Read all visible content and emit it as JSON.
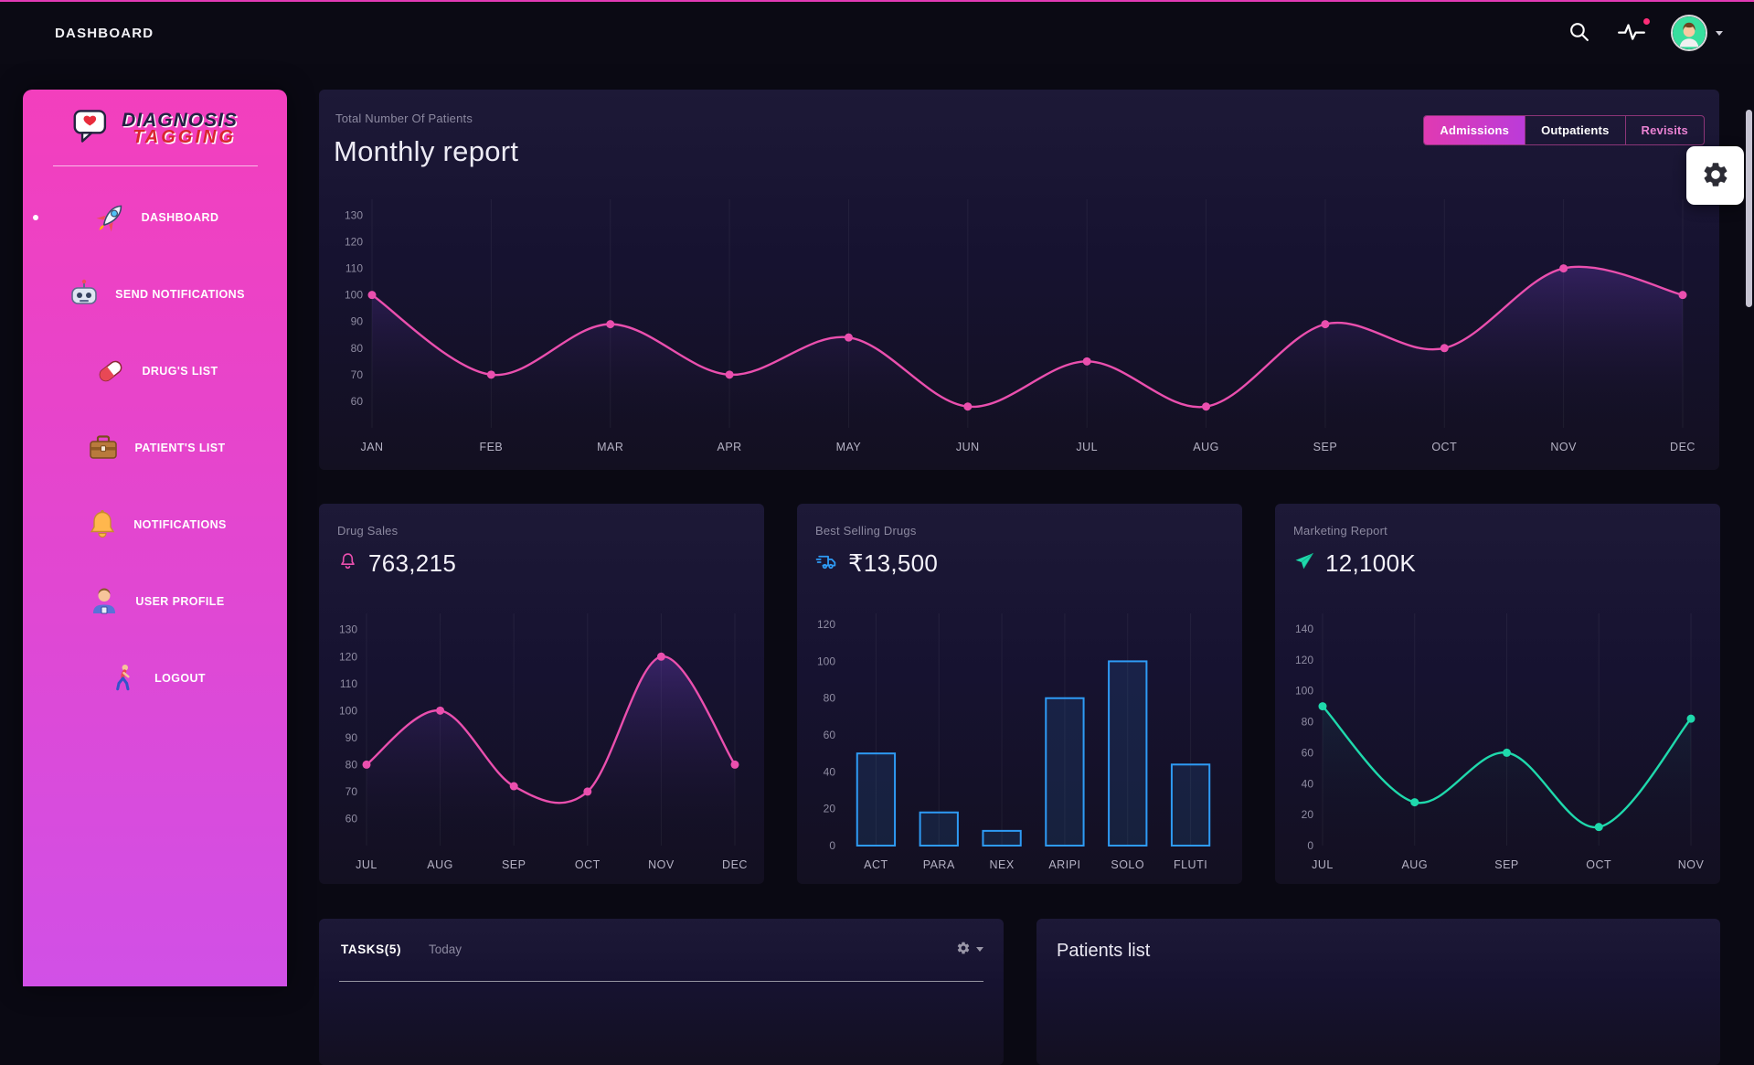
{
  "colors": {
    "accent_pink": "#ea4fae",
    "accent_magenta": "#e03ab2",
    "accent_blue": "#2e9bf5",
    "accent_teal": "#1fd9ac",
    "sidebar_gradient_top": "#f33fbd",
    "sidebar_gradient_bottom": "#d150e6"
  },
  "icons": {
    "search": "magnifier",
    "activity": "pulse-line-with-dot",
    "user_menu": "avatar-with-caret",
    "settings": "gear",
    "drug_sales": "bell-outline",
    "best_selling": "delivery-truck",
    "marketing": "paper-plane",
    "tasks_menu": "gear-with-caret",
    "logo": "chat-bubble-heart"
  },
  "header": {
    "title": "DASHBOARD"
  },
  "sidebar": {
    "logo_line1": "DIAGNOSIS",
    "logo_line2": "TAGGING",
    "items": [
      {
        "label": "DASHBOARD",
        "icon": "rocket",
        "active": true
      },
      {
        "label": "SEND NOTIFICATIONS",
        "icon": "robot",
        "active": false
      },
      {
        "label": "DRUG'S LIST",
        "icon": "pill",
        "active": false
      },
      {
        "label": "PATIENT'S LIST",
        "icon": "briefcase",
        "active": false
      },
      {
        "label": "NOTIFICATIONS",
        "icon": "bell",
        "active": false
      },
      {
        "label": "USER PROFILE",
        "icon": "person",
        "active": false
      },
      {
        "label": "LOGOUT",
        "icon": "walking-person",
        "active": false
      }
    ]
  },
  "monthly": {
    "subtitle": "Total Number Of Patients",
    "title": "Monthly report",
    "tabs": [
      {
        "label": "Admissions",
        "active": true
      },
      {
        "label": "Outpatients",
        "active": false
      },
      {
        "label": "Revisits",
        "active": false
      }
    ]
  },
  "stat_cards": [
    {
      "title": "Drug Sales",
      "value": "763,215"
    },
    {
      "title": "Best Selling Drugs",
      "value": "₹13,500"
    },
    {
      "title": "Marketing Report",
      "value": "12,100K"
    }
  ],
  "tasks": {
    "title": "TASKS(5)",
    "filter": "Today"
  },
  "patients": {
    "title": "Patients list"
  },
  "chart_data": [
    {
      "id": "monthly-report",
      "type": "line",
      "title": "Monthly report",
      "categories": [
        "JAN",
        "FEB",
        "MAR",
        "APR",
        "MAY",
        "JUN",
        "JUL",
        "AUG",
        "SEP",
        "OCT",
        "NOV",
        "DEC"
      ],
      "values": [
        100,
        70,
        89,
        70,
        84,
        58,
        75,
        58,
        89,
        80,
        110,
        100
      ],
      "ylim": [
        50,
        136
      ],
      "yticks": [
        130,
        120,
        110,
        100,
        90,
        80,
        70,
        60
      ],
      "grid": "vertical",
      "legend": "none",
      "line_color": "#ea4fae",
      "fill": "rgba(124,70,212,0.28)",
      "markers": true
    },
    {
      "id": "drug-sales",
      "type": "line",
      "title": "Drug Sales",
      "categories": [
        "JUL",
        "AUG",
        "SEP",
        "OCT",
        "NOV",
        "DEC"
      ],
      "values": [
        80,
        100,
        72,
        70,
        120,
        80
      ],
      "ylim": [
        50,
        136
      ],
      "yticks": [
        130,
        120,
        110,
        100,
        90,
        80,
        70,
        60
      ],
      "grid": "vertical",
      "legend": "none",
      "line_color": "#ea4fae",
      "fill": "rgba(124,70,212,0.32)",
      "markers": true
    },
    {
      "id": "best-selling-drugs",
      "type": "bar",
      "title": "Best Selling Drugs",
      "categories": [
        "ACT",
        "PARA",
        "NEX",
        "ARIPI",
        "SOLO",
        "FLUTI"
      ],
      "values": [
        50,
        18,
        8,
        80,
        100,
        44
      ],
      "ylim": [
        0,
        126
      ],
      "yticks": [
        120,
        100,
        80,
        60,
        40,
        20,
        0
      ],
      "grid": "vertical",
      "legend": "none",
      "bar_color": "#2e9bf5",
      "bar_fill": "rgba(46,155,245,0.12)"
    },
    {
      "id": "marketing-report",
      "type": "line",
      "title": "Marketing Report",
      "categories": [
        "JUL",
        "AUG",
        "SEP",
        "OCT",
        "NOV"
      ],
      "values": [
        90,
        28,
        60,
        12,
        82
      ],
      "ylim": [
        0,
        150
      ],
      "yticks": [
        140,
        120,
        100,
        80,
        60,
        40,
        20,
        0
      ],
      "grid": "vertical",
      "legend": "none",
      "line_color": "#1fd9ac",
      "fill": "rgba(31,217,172,0.08)",
      "markers": true
    }
  ]
}
